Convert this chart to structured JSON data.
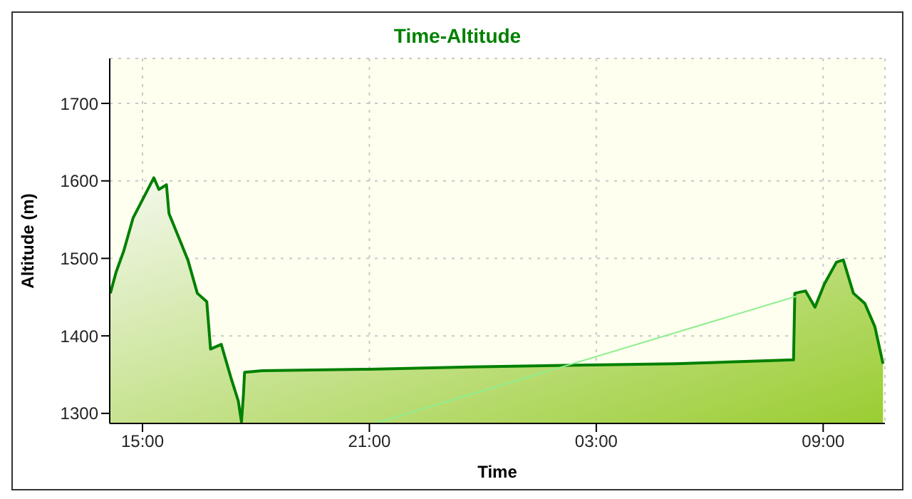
{
  "chart_data": {
    "type": "area",
    "title": "Time-Altitude",
    "xlabel": "Time",
    "ylabel": "Altitude (m)",
    "xlim": [
      "--01-01T14:08",
      "--01-02T10:38"
    ],
    "xticks": [
      {
        "value": "--01-01T15:00",
        "label": "15:00"
      },
      {
        "value": "--01-01T21:00",
        "label": "21:00"
      },
      {
        "value": "--01-02T03:00",
        "label": "03:00"
      },
      {
        "value": "--01-02T09:00",
        "label": "09:00"
      }
    ],
    "ylim": [
      1287,
      1758
    ],
    "yticks": [
      1300,
      1400,
      1500,
      1600,
      1700
    ],
    "grid": true,
    "series": [
      {
        "color": "#008000",
        "x": [
          "--01-01T14:09",
          "--01-01T14:18",
          "--01-01T14:30",
          "--01-01T14:45",
          "--01-01T15:04",
          "--01-01T15:18",
          "--01-01T15:26",
          "--01-01T15:38",
          "--01-01T15:42",
          "--01-01T15:57",
          "--01-01T16:12",
          "--01-01T16:27",
          "--01-01T16:42",
          "--01-01T16:48",
          "--01-01T17:05",
          "--01-01T17:20",
          "--01-01T17:32",
          "--01-01T17:37",
          "--01-01T17:40",
          "--01-01T17:42",
          "--01-01T18:10",
          "--01-01T21:00",
          "--01-01T23:40",
          "--01-02T02:12",
          "--01-02T05:06",
          "--01-02T08:13",
          "--01-02T08:15",
          "--01-02T08:32",
          "--01-02T08:47",
          "--01-02T09:02",
          "--01-02T09:21",
          "--01-02T09:32",
          "--01-02T09:48",
          "--01-02T10:06",
          "--01-02T10:22",
          "--01-02T10:35"
        ],
        "values": [
          1455,
          1482,
          1509,
          1552,
          1582,
          1604,
          1589,
          1595,
          1558,
          1528,
          1498,
          1455,
          1444,
          1383,
          1389,
          1347,
          1316,
          1289,
          1322,
          1353,
          1355,
          1357,
          1360,
          1362,
          1364,
          1369,
          1455,
          1458,
          1437,
          1467,
          1495,
          1498,
          1455,
          1442,
          1412,
          1364
        ]
      },
      {
        "type": "line",
        "color": "#90ee90",
        "x": [
          "--01-01T21:08",
          "--01-02T08:17"
        ],
        "values": [
          1287,
          1451
        ]
      }
    ]
  }
}
